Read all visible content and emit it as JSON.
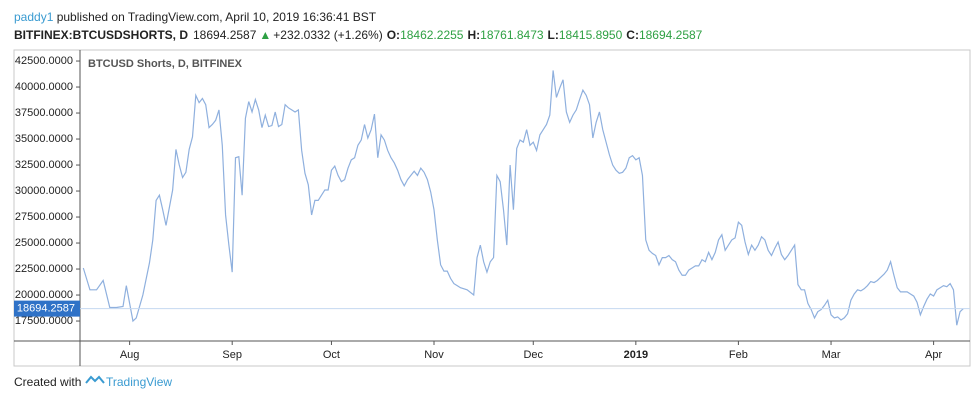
{
  "header": {
    "author": "paddy1",
    "published": " published on TradingView.com, April 10, 2019 16:36:41 BST",
    "symbol": "BITFINEX:BTCUSDSHORTS, D",
    "close": "18694.2587",
    "arrow": "▲",
    "change": "+232.0332 (+1.26%)",
    "ohlc": [
      {
        "label": "O:",
        "value": "18462.2255"
      },
      {
        "label": "H:",
        "value": "18761.8473"
      },
      {
        "label": "L:",
        "value": "18415.8950"
      },
      {
        "label": "C:",
        "value": "18694.2587"
      }
    ]
  },
  "footer": {
    "created": "Created with",
    "brand": "TradingView"
  },
  "chart_data": {
    "type": "line",
    "title": "BTCUSD Shorts, D, BITFINEX",
    "color": "#8fb0de",
    "x": [
      17,
      19,
      21,
      23,
      25,
      27,
      29,
      30,
      32,
      33,
      35,
      37,
      38,
      39,
      40,
      41,
      42,
      44,
      45,
      46,
      47,
      48,
      49,
      50,
      51,
      52,
      53,
      54,
      55,
      56,
      57,
      58,
      59,
      60,
      61,
      62,
      63,
      64,
      65,
      66,
      67,
      68,
      69,
      70,
      71,
      72,
      73,
      74,
      75,
      76,
      77,
      78,
      79,
      80,
      81,
      82,
      83,
      84,
      85,
      86,
      87,
      88,
      89,
      90,
      91,
      92,
      93,
      94,
      95,
      96,
      97,
      98,
      99,
      100,
      101,
      102,
      103,
      104,
      105,
      106,
      107,
      108,
      109,
      110,
      111,
      112,
      113,
      114,
      115,
      116,
      117,
      118,
      119,
      120,
      121,
      122,
      123,
      124,
      125,
      126,
      127,
      128,
      129,
      130,
      131,
      133,
      135,
      136,
      137,
      138,
      139,
      140,
      141,
      142,
      143,
      144,
      145,
      146,
      147,
      148,
      149,
      150,
      151,
      152,
      153,
      154,
      155,
      156,
      157,
      158,
      159,
      160,
      161,
      162,
      163,
      164,
      165,
      166,
      167,
      168,
      169,
      170,
      171,
      172,
      173,
      174,
      175,
      176,
      177,
      178,
      179,
      180,
      181,
      182,
      183,
      184,
      185,
      186,
      187,
      188,
      189,
      190,
      191,
      192,
      193,
      194,
      195,
      196,
      197,
      198,
      199,
      200,
      201,
      202,
      203,
      204,
      205,
      206,
      207,
      208,
      209,
      210,
      211,
      212,
      213,
      214,
      215,
      216,
      217,
      218,
      219,
      220,
      221,
      222,
      223,
      224,
      225,
      226,
      227,
      228,
      229,
      230,
      231,
      232,
      233,
      234,
      235,
      236,
      237,
      238,
      239,
      240,
      241,
      242,
      243,
      244,
      245,
      246,
      247,
      248,
      249,
      250,
      251,
      252,
      253,
      254,
      255,
      256,
      257,
      258,
      259,
      260,
      261,
      262,
      263,
      264,
      265,
      266,
      267,
      268,
      269,
      270,
      271,
      272,
      273,
      274,
      275,
      276,
      277,
      278,
      279,
      280,
      281,
      282,
      283
    ],
    "values": [
      22600,
      20500,
      20500,
      21400,
      18800,
      18800,
      18900,
      20900,
      17500,
      17800,
      20000,
      23100,
      25300,
      29100,
      29600,
      28200,
      26700,
      30100,
      34000,
      32500,
      31300,
      31800,
      34000,
      35200,
      39200,
      38500,
      38900,
      38300,
      36100,
      36400,
      36800,
      37800,
      34400,
      27700,
      24800,
      22200,
      33200,
      33300,
      29600,
      37000,
      38600,
      37600,
      38800,
      37800,
      36100,
      37300,
      36200,
      36300,
      37600,
      36200,
      36400,
      38300,
      38000,
      37800,
      37600,
      37800,
      33900,
      31700,
      30600,
      27700,
      29100,
      29100,
      29600,
      30100,
      30100,
      32000,
      32400,
      31500,
      30900,
      31100,
      32200,
      33000,
      33200,
      34400,
      34900,
      36400,
      35100,
      35900,
      37400,
      33200,
      35400,
      34900,
      33900,
      33200,
      32700,
      32000,
      31100,
      30500,
      31100,
      31500,
      31900,
      31500,
      32200,
      31800,
      31100,
      29900,
      28200,
      25300,
      22900,
      22300,
      22300,
      21600,
      21100,
      20900,
      20700,
      20500,
      20000,
      23600,
      24800,
      23200,
      22200,
      23200,
      23600,
      31500,
      30900,
      28200,
      24800,
      32500,
      28200,
      34100,
      34900,
      34700,
      35900,
      34400,
      34700,
      33900,
      35400,
      35900,
      36400,
      37300,
      41600,
      39000,
      39900,
      40700,
      37600,
      36600,
      37300,
      37800,
      38800,
      39700,
      39200,
      38300,
      35100,
      36600,
      37600,
      35900,
      34700,
      33500,
      32500,
      32000,
      31700,
      31800,
      32200,
      33200,
      33400,
      33000,
      33200,
      31500,
      25300,
      24300,
      24000,
      23800,
      22900,
      23600,
      23600,
      23800,
      23400,
      23200,
      22400,
      21900,
      21900,
      22400,
      22600,
      22800,
      22800,
      23400,
      23200,
      24100,
      23400,
      24100,
      25300,
      25800,
      24300,
      24800,
      25300,
      25500,
      27000,
      26700,
      25100,
      23900,
      24800,
      24300,
      24800,
      25600,
      25300,
      24300,
      23800,
      24500,
      25100,
      23900,
      23400,
      23800,
      24300,
      24800,
      21000,
      20500,
      20500,
      19200,
      18600,
      17800,
      18400,
      18600,
      19000,
      19500,
      18100,
      17800,
      17900,
      17600,
      17800,
      18200,
      19500,
      20100,
      20500,
      20400,
      20600,
      20900,
      21300,
      21200,
      21400,
      21700,
      22000,
      22400,
      23200,
      21900,
      20700,
      20300,
      20300,
      20300,
      20100,
      19900,
      19300,
      18100,
      18900,
      19600,
      20100,
      19900,
      20500,
      20700,
      20900,
      20800,
      21100,
      20500,
      17100,
      18400,
      18694.2587
    ],
    "xlim": [
      16,
      285
    ],
    "xticks": [
      {
        "value": 31,
        "label": "Aug"
      },
      {
        "value": 62,
        "label": "Sep"
      },
      {
        "value": 92,
        "label": "Oct"
      },
      {
        "value": 123,
        "label": "Nov"
      },
      {
        "value": 153,
        "label": "Dec"
      },
      {
        "value": 184,
        "label": "2019"
      },
      {
        "value": 215,
        "label": "Feb"
      },
      {
        "value": 243,
        "label": "Mar"
      },
      {
        "value": 274,
        "label": "Apr"
      }
    ],
    "ylim": [
      15580,
      43080
    ],
    "yticks": [
      {
        "value": 17500,
        "label": "17500.0000"
      },
      {
        "value": 20000,
        "label": "20000.0000"
      },
      {
        "value": 22500,
        "label": "22500.0000"
      },
      {
        "value": 25000,
        "label": "25000.0000"
      },
      {
        "value": 27500,
        "label": "27500.0000"
      },
      {
        "value": 30000,
        "label": "30000.0000"
      },
      {
        "value": 32500,
        "label": "32500.0000"
      },
      {
        "value": 35000,
        "label": "35000.0000"
      },
      {
        "value": 37500,
        "label": "37500.0000"
      },
      {
        "value": 40000,
        "label": "40000.0000"
      },
      {
        "value": 42500,
        "label": "42500.0000"
      }
    ],
    "grid": false
  }
}
